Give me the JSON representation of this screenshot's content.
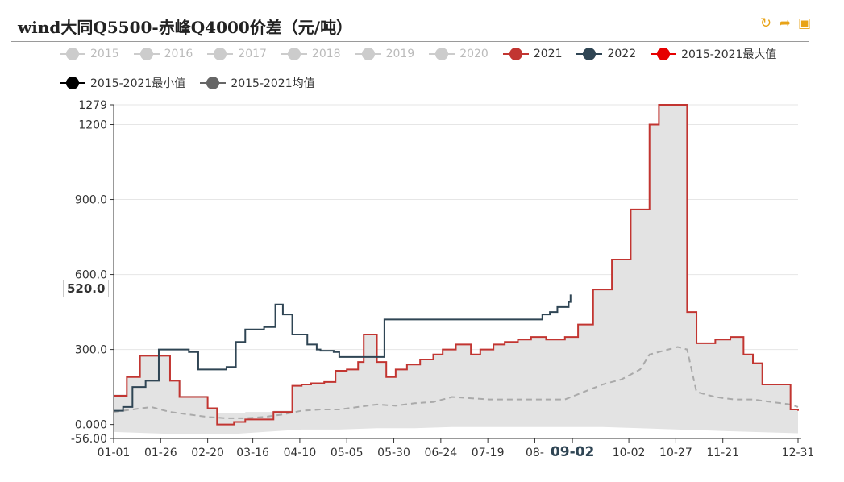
{
  "title": "wind大同Q5500-赤峰Q4000价差（元/吨）",
  "toolbar": [
    {
      "icon": "refresh-icon",
      "glyph": "↻"
    },
    {
      "icon": "share-icon",
      "glyph": "➦"
    },
    {
      "icon": "save-image-icon",
      "glyph": "▣"
    }
  ],
  "legend": [
    {
      "name": "2015",
      "color": "#cccccc",
      "label_color": "#bbbbbb"
    },
    {
      "name": "2016",
      "color": "#cccccc",
      "label_color": "#bbbbbb"
    },
    {
      "name": "2017",
      "color": "#cccccc",
      "label_color": "#bbbbbb"
    },
    {
      "name": "2018",
      "color": "#cccccc",
      "label_color": "#bbbbbb"
    },
    {
      "name": "2019",
      "color": "#cccccc",
      "label_color": "#bbbbbb"
    },
    {
      "name": "2020",
      "color": "#cccccc",
      "label_color": "#bbbbbb"
    },
    {
      "name": "2021",
      "color": "#c23531",
      "label_color": "#333333"
    },
    {
      "name": "2022",
      "color": "#2f4554",
      "label_color": "#333333"
    },
    {
      "name": "2015-2021最大值",
      "color": "#e60000",
      "label_color": "#333333"
    },
    {
      "name": "2015-2021最小值",
      "color": "#000000",
      "label_color": "#333333"
    },
    {
      "name": "2015-2021均值",
      "color": "#666666",
      "label_color": "#333333"
    }
  ],
  "pointer_value": "520.0",
  "chart_data": {
    "type": "line",
    "x_ticks": [
      "01-01",
      "01-26",
      "02-20",
      "03-16",
      "04-10",
      "05-05",
      "05-30",
      "06-24",
      "07-19",
      "08-",
      "09-02",
      "10-02",
      "10-27",
      "11-21",
      "12-31"
    ],
    "x_tick_days": [
      0,
      25,
      50,
      74,
      99,
      124,
      149,
      174,
      199,
      224,
      244,
      274,
      299,
      324,
      364
    ],
    "x_highlight_label": "09-02",
    "y_ticks": [
      "-56.00",
      "0.000",
      "300.0",
      "600.0",
      "900.0",
      "1200",
      "1279"
    ],
    "y_tick_values": [
      -56,
      0,
      300,
      600,
      900,
      1200,
      1279
    ],
    "ylim": [
      -56,
      1279
    ],
    "x_range_days": [
      0,
      364
    ],
    "grid": true,
    "series": [
      {
        "name": "2021",
        "color": "#c23531",
        "style": "step",
        "x": [
          0,
          7,
          14,
          23,
          30,
          35,
          45,
          50,
          55,
          60,
          64,
          70,
          80,
          85,
          95,
          100,
          105,
          112,
          118,
          124,
          130,
          133,
          140,
          145,
          150,
          156,
          163,
          170,
          175,
          182,
          190,
          195,
          202,
          208,
          215,
          222,
          230,
          240,
          247,
          255,
          265,
          275,
          285,
          290,
          299,
          305,
          310,
          315,
          320,
          328,
          335,
          340,
          345,
          352,
          360,
          364
        ],
        "y": [
          115,
          190,
          275,
          275,
          175,
          110,
          110,
          65,
          0,
          0,
          10,
          20,
          20,
          50,
          155,
          160,
          165,
          170,
          215,
          220,
          250,
          360,
          250,
          190,
          220,
          240,
          260,
          280,
          300,
          320,
          280,
          300,
          320,
          330,
          340,
          350,
          340,
          350,
          400,
          540,
          660,
          860,
          1200,
          1279,
          1279,
          450,
          325,
          325,
          340,
          350,
          280,
          245,
          160,
          160,
          60,
          55
        ]
      },
      {
        "name": "2022",
        "color": "#2f4554",
        "style": "step",
        "x": [
          0,
          5,
          10,
          17,
          24,
          27,
          40,
          45,
          55,
          60,
          65,
          70,
          80,
          86,
          90,
          95,
          103,
          108,
          110,
          117,
          120,
          125,
          143,
          144,
          195,
          220,
          228,
          232,
          236,
          242,
          243
        ],
        "y": [
          55,
          70,
          150,
          175,
          300,
          300,
          290,
          220,
          220,
          230,
          330,
          380,
          390,
          480,
          440,
          360,
          320,
          300,
          295,
          290,
          270,
          270,
          270,
          420,
          420,
          420,
          440,
          450,
          470,
          490,
          520
        ]
      },
      {
        "name": "2015-2021均值",
        "color": "#aaaaaa",
        "style": "dashed",
        "x": [
          0,
          10,
          20,
          30,
          40,
          50,
          60,
          70,
          80,
          90,
          100,
          110,
          120,
          130,
          140,
          150,
          160,
          170,
          180,
          190,
          200,
          210,
          220,
          230,
          240,
          250,
          260,
          270,
          280,
          285,
          295,
          300,
          305,
          310,
          320,
          330,
          340,
          350,
          360,
          364
        ],
        "y": [
          50,
          60,
          70,
          50,
          40,
          30,
          25,
          25,
          30,
          40,
          55,
          60,
          60,
          70,
          80,
          75,
          85,
          90,
          110,
          105,
          100,
          100,
          100,
          100,
          100,
          130,
          160,
          180,
          220,
          280,
          300,
          310,
          300,
          130,
          110,
          100,
          100,
          90,
          80,
          70
        ]
      },
      {
        "name": "2015-2021最大值",
        "color": "#e0e0e0",
        "style": "area-top",
        "x": [
          0,
          7,
          14,
          24,
          30,
          36,
          45,
          50,
          55,
          60,
          64,
          70,
          80,
          85,
          95,
          100,
          105,
          112,
          118,
          124,
          130,
          133,
          140,
          145,
          150,
          156,
          163,
          170,
          175,
          182,
          190,
          195,
          202,
          208,
          215,
          222,
          230,
          240,
          247,
          255,
          265,
          275,
          285,
          290,
          299,
          305,
          310,
          315,
          320,
          328,
          335,
          340,
          345,
          352,
          360,
          364
        ],
        "y": [
          120,
          190,
          275,
          275,
          175,
          115,
          115,
          65,
          45,
          45,
          45,
          50,
          50,
          55,
          155,
          160,
          165,
          170,
          215,
          220,
          250,
          360,
          250,
          190,
          220,
          240,
          260,
          280,
          300,
          320,
          280,
          300,
          320,
          330,
          340,
          350,
          340,
          350,
          400,
          540,
          660,
          860,
          1200,
          1279,
          1279,
          450,
          325,
          325,
          340,
          350,
          280,
          245,
          160,
          160,
          60,
          55
        ]
      },
      {
        "name": "2015-2021最小值",
        "color": "#e0e0e0",
        "style": "area-bottom",
        "x": [
          0,
          20,
          40,
          60,
          80,
          100,
          120,
          140,
          160,
          180,
          200,
          220,
          240,
          260,
          280,
          300,
          320,
          340,
          364
        ],
        "y": [
          -30,
          -35,
          -40,
          -40,
          -30,
          -20,
          -20,
          -15,
          -15,
          -10,
          -10,
          -10,
          -10,
          -10,
          -15,
          -20,
          -25,
          -30,
          -35
        ]
      }
    ]
  }
}
